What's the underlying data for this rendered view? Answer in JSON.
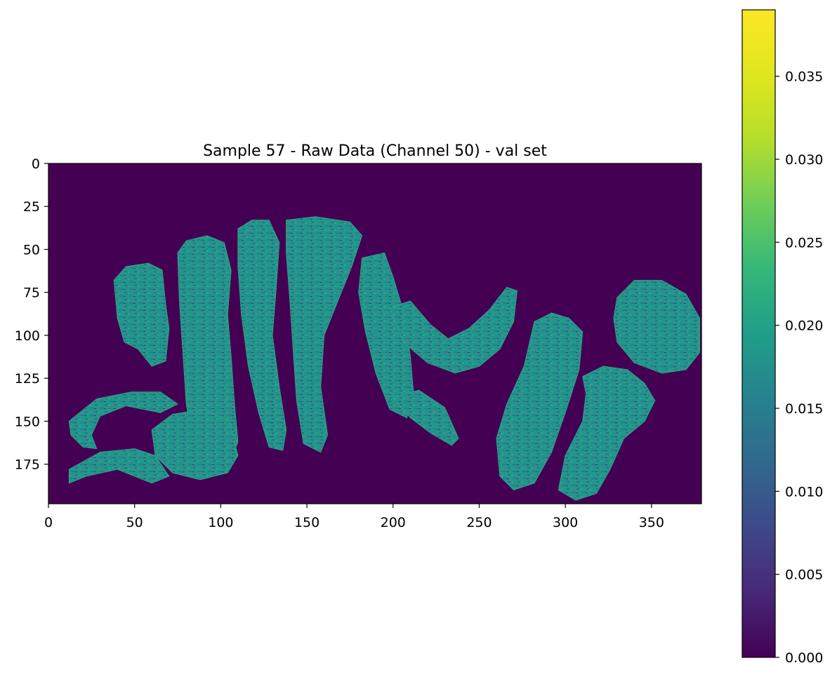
{
  "chart_data": {
    "type": "heatmap",
    "title": "Sample 57 - Raw Data (Channel 50) - val set",
    "xlabel": "",
    "ylabel": "",
    "xlim": [
      0,
      379
    ],
    "ylim": [
      198,
      0
    ],
    "x_ticks": [
      0,
      50,
      100,
      150,
      200,
      250,
      300,
      350
    ],
    "x_tick_labels": [
      "0",
      "50",
      "100",
      "150",
      "200",
      "250",
      "300",
      "350"
    ],
    "y_ticks": [
      0,
      25,
      50,
      75,
      100,
      125,
      150,
      175
    ],
    "y_tick_labels": [
      "0",
      "25",
      "50",
      "75",
      "100",
      "125",
      "150",
      "175"
    ],
    "colormap": "viridis",
    "colorbar": {
      "range": [
        0,
        0.039
      ],
      "ticks": [
        0,
        0.005,
        0.01,
        0.015,
        0.02,
        0.025,
        0.03,
        0.035
      ],
      "tick_labels": [
        "0.000",
        "0.005",
        "0.010",
        "0.015",
        "0.020",
        "0.025",
        "0.030",
        "0.035"
      ]
    },
    "background_value": 0,
    "typical_tissue_value": 0.021,
    "tissue_regions": [
      {
        "name": "left-bottom-fold",
        "polygon": [
          [
            12,
            178
          ],
          [
            30,
            168
          ],
          [
            50,
            166
          ],
          [
            62,
            170
          ],
          [
            70,
            182
          ],
          [
            60,
            186
          ],
          [
            40,
            178
          ],
          [
            22,
            182
          ],
          [
            12,
            186
          ]
        ]
      },
      {
        "name": "left-lower-arc",
        "polygon": [
          [
            12,
            150
          ],
          [
            28,
            137
          ],
          [
            48,
            133
          ],
          [
            65,
            133
          ],
          [
            75,
            140
          ],
          [
            65,
            145
          ],
          [
            45,
            141
          ],
          [
            30,
            147
          ],
          [
            25,
            158
          ],
          [
            28,
            166
          ],
          [
            20,
            165
          ],
          [
            13,
            158
          ]
        ]
      },
      {
        "name": "left-lobe",
        "polygon": [
          [
            38,
            68
          ],
          [
            45,
            60
          ],
          [
            58,
            58
          ],
          [
            66,
            62
          ],
          [
            68,
            82
          ],
          [
            70,
            96
          ],
          [
            68,
            115
          ],
          [
            60,
            118
          ],
          [
            52,
            108
          ],
          [
            44,
            104
          ],
          [
            40,
            90
          ]
        ]
      },
      {
        "name": "central-lobe-1",
        "polygon": [
          [
            75,
            52
          ],
          [
            80,
            45
          ],
          [
            92,
            42
          ],
          [
            102,
            46
          ],
          [
            106,
            62
          ],
          [
            104,
            88
          ],
          [
            106,
            112
          ],
          [
            108,
            140
          ],
          [
            110,
            162
          ],
          [
            104,
            178
          ],
          [
            92,
            183
          ],
          [
            85,
            168
          ],
          [
            80,
            140
          ],
          [
            78,
            110
          ],
          [
            76,
            80
          ]
        ]
      },
      {
        "name": "central-lobe-2",
        "polygon": [
          [
            110,
            38
          ],
          [
            118,
            33
          ],
          [
            128,
            33
          ],
          [
            134,
            46
          ],
          [
            132,
            75
          ],
          [
            130,
            100
          ],
          [
            134,
            130
          ],
          [
            138,
            155
          ],
          [
            136,
            167
          ],
          [
            128,
            165
          ],
          [
            122,
            145
          ],
          [
            116,
            118
          ],
          [
            112,
            88
          ],
          [
            110,
            60
          ]
        ]
      },
      {
        "name": "central-lobe-3",
        "polygon": [
          [
            138,
            33
          ],
          [
            155,
            31
          ],
          [
            175,
            34
          ],
          [
            182,
            42
          ],
          [
            176,
            60
          ],
          [
            168,
            80
          ],
          [
            160,
            100
          ],
          [
            158,
            130
          ],
          [
            162,
            158
          ],
          [
            158,
            168
          ],
          [
            148,
            163
          ],
          [
            144,
            138
          ],
          [
            142,
            108
          ],
          [
            140,
            78
          ],
          [
            138,
            52
          ]
        ]
      },
      {
        "name": "central-lobe-4",
        "polygon": [
          [
            182,
            55
          ],
          [
            195,
            52
          ],
          [
            200,
            66
          ],
          [
            206,
            86
          ],
          [
            210,
            112
          ],
          [
            212,
            135
          ],
          [
            208,
            148
          ],
          [
            198,
            143
          ],
          [
            190,
            122
          ],
          [
            184,
            98
          ],
          [
            180,
            75
          ]
        ]
      },
      {
        "name": "lower-middle-mass",
        "polygon": [
          [
            60,
            155
          ],
          [
            72,
            146
          ],
          [
            90,
            143
          ],
          [
            105,
            150
          ],
          [
            110,
            170
          ],
          [
            104,
            180
          ],
          [
            88,
            184
          ],
          [
            72,
            180
          ],
          [
            62,
            170
          ]
        ]
      },
      {
        "name": "right-middle-tongue",
        "polygon": [
          [
            200,
            136
          ],
          [
            215,
            132
          ],
          [
            230,
            142
          ],
          [
            238,
            160
          ],
          [
            234,
            164
          ],
          [
            222,
            157
          ],
          [
            210,
            148
          ]
        ]
      },
      {
        "name": "arm-to-right",
        "polygon": [
          [
            198,
            84
          ],
          [
            210,
            80
          ],
          [
            222,
            94
          ],
          [
            232,
            102
          ],
          [
            244,
            96
          ],
          [
            256,
            85
          ],
          [
            266,
            72
          ],
          [
            272,
            74
          ],
          [
            270,
            92
          ],
          [
            262,
            108
          ],
          [
            250,
            118
          ],
          [
            236,
            122
          ],
          [
            220,
            116
          ],
          [
            206,
            104
          ]
        ]
      },
      {
        "name": "right-lobe-a",
        "polygon": [
          [
            282,
            92
          ],
          [
            292,
            87
          ],
          [
            302,
            90
          ],
          [
            310,
            98
          ],
          [
            308,
            120
          ],
          [
            300,
            145
          ],
          [
            292,
            168
          ],
          [
            282,
            186
          ],
          [
            270,
            190
          ],
          [
            262,
            182
          ],
          [
            260,
            160
          ],
          [
            266,
            140
          ],
          [
            276,
            118
          ]
        ]
      },
      {
        "name": "right-lobe-b",
        "polygon": [
          [
            310,
            124
          ],
          [
            322,
            118
          ],
          [
            336,
            120
          ],
          [
            346,
            128
          ],
          [
            352,
            138
          ],
          [
            346,
            150
          ],
          [
            334,
            160
          ],
          [
            326,
            178
          ],
          [
            318,
            192
          ],
          [
            306,
            196
          ],
          [
            296,
            190
          ],
          [
            300,
            170
          ],
          [
            310,
            150
          ],
          [
            312,
            134
          ]
        ]
      },
      {
        "name": "right-loop",
        "polygon": [
          [
            330,
            78
          ],
          [
            340,
            68
          ],
          [
            356,
            68
          ],
          [
            370,
            76
          ],
          [
            378,
            90
          ],
          [
            378,
            110
          ],
          [
            370,
            120
          ],
          [
            356,
            122
          ],
          [
            340,
            116
          ],
          [
            330,
            104
          ],
          [
            328,
            90
          ]
        ]
      }
    ]
  }
}
